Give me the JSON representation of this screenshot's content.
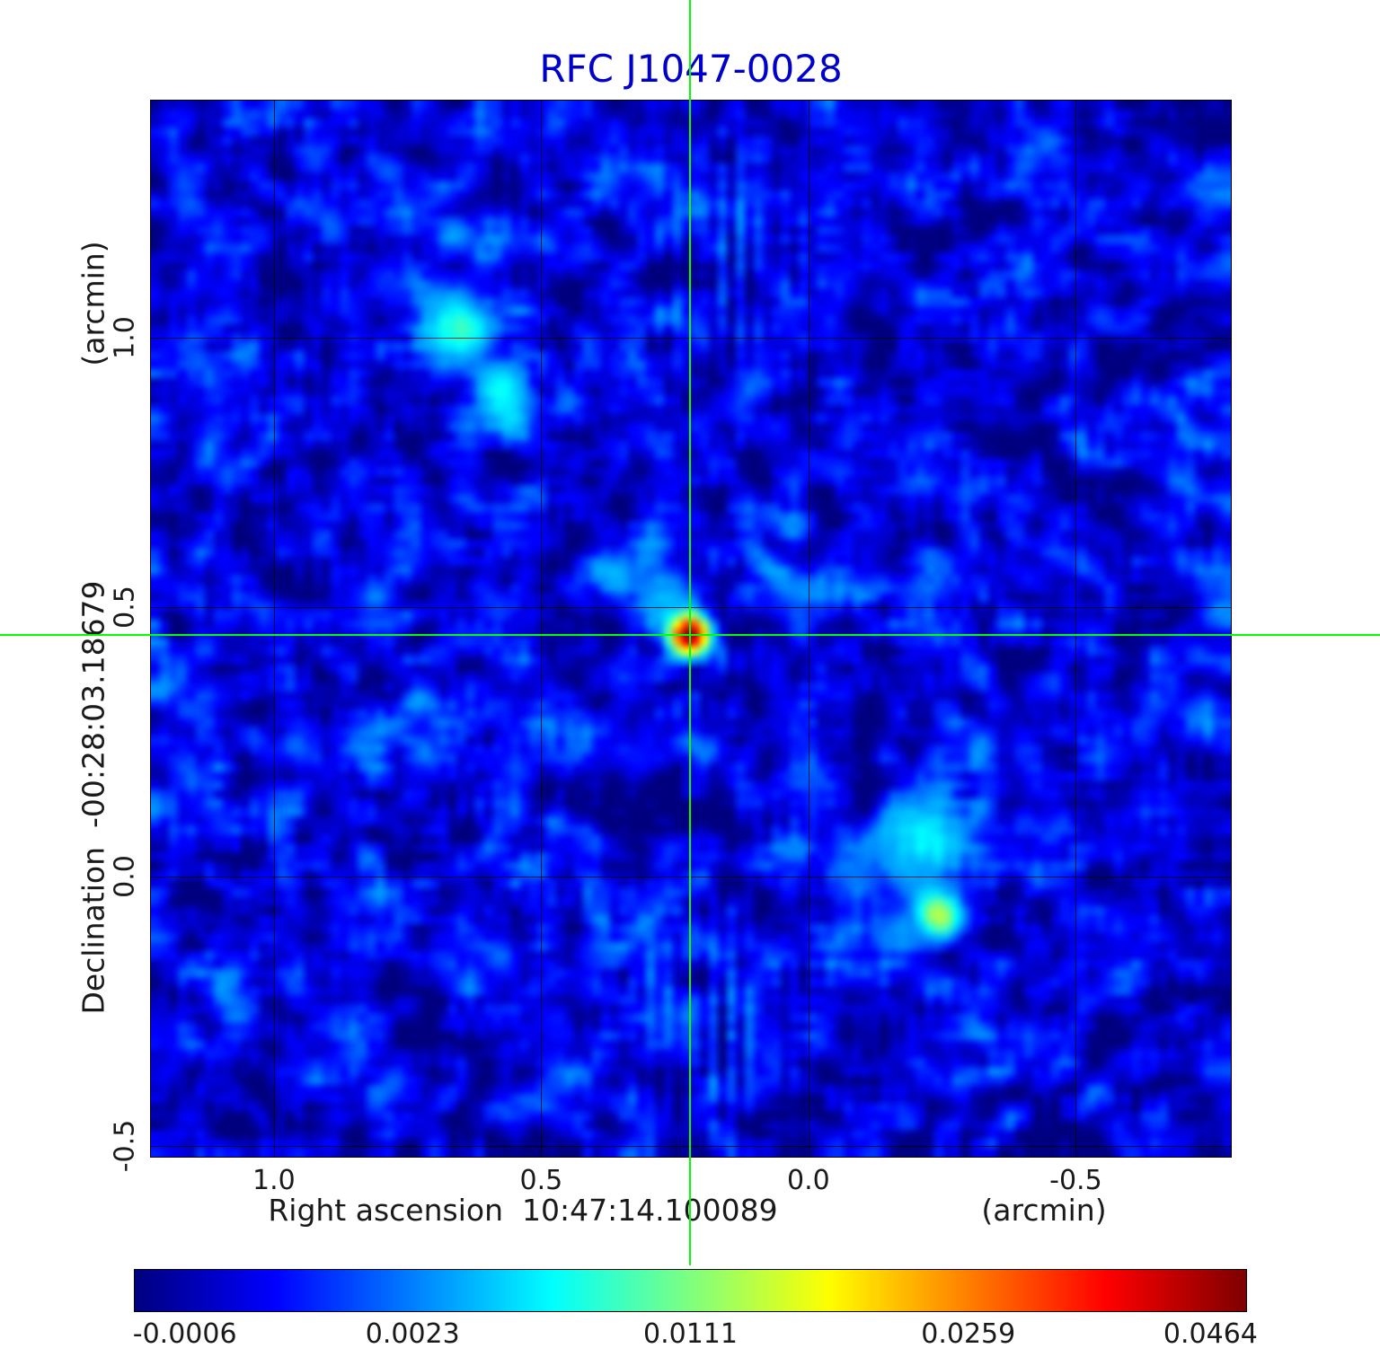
{
  "chart_data": {
    "type": "heatmap",
    "title": "RFC J1047-0028",
    "colormap": "jet",
    "grid": true,
    "x_axis": {
      "label": "Right ascension  10:47:14.100089",
      "unit_label": "(arcmin)",
      "ticks": [
        "1.0",
        "0.5",
        "0.0",
        "-0.5"
      ],
      "tick_values": [
        1.0,
        0.5,
        0.0,
        -0.5
      ],
      "range": [
        1.23,
        -0.79
      ]
    },
    "y_axis": {
      "label": "Declination  -00:28:03.18679",
      "unit_label": "(arcmin)",
      "ticks": [
        "1.0",
        "0.5",
        "0.0",
        "-0.5"
      ],
      "tick_values": [
        1.0,
        0.5,
        0.0,
        -0.5
      ],
      "range": [
        -0.52,
        1.44
      ]
    },
    "colorbar": {
      "ticks": [
        {
          "label": "-0.0006",
          "pos": 0.045
        },
        {
          "label": "0.0023",
          "pos": 0.25
        },
        {
          "label": "0.0111",
          "pos": 0.5
        },
        {
          "label": "0.0259",
          "pos": 0.75
        },
        {
          "label": "0.0464",
          "pos": 0.968
        }
      ]
    },
    "value_anchors": [
      [
        -0.00124,
        0.0
      ],
      [
        -0.0006,
        0.045
      ],
      [
        0.0023,
        0.25
      ],
      [
        0.0111,
        0.5
      ],
      [
        0.0259,
        0.75
      ],
      [
        0.0464,
        0.968
      ],
      [
        0.0494,
        1.0
      ]
    ],
    "crosshair": {
      "x": 0.222,
      "y": 0.449
    },
    "sources": [
      {
        "x": 0.222,
        "y": 0.449,
        "amp": 0.05,
        "sx": 0.021,
        "sy": 0.021
      },
      {
        "x": 0.27,
        "y": 0.5,
        "amp": 0.005,
        "sx": 0.03,
        "sy": 0.03
      },
      {
        "x": 0.335,
        "y": 0.555,
        "amp": 0.003,
        "sx": 0.045,
        "sy": 0.04
      },
      {
        "x": 0.655,
        "y": 1.013,
        "amp": 0.0085,
        "sx": 0.045,
        "sy": 0.04
      },
      {
        "x": 0.575,
        "y": 0.89,
        "amp": 0.006,
        "sx": 0.035,
        "sy": 0.045
      },
      {
        "x": -0.21,
        "y": 0.077,
        "amp": 0.0065,
        "sx": 0.06,
        "sy": 0.055
      },
      {
        "x": -0.244,
        "y": -0.073,
        "amp": 0.013,
        "sx": 0.028,
        "sy": 0.028
      }
    ],
    "stripes": [
      {
        "x": 0.151,
        "y": 1.16,
        "amp": 0.0013,
        "sx": 0.1,
        "sy": 0.13,
        "period": 0.03
      },
      {
        "x": 0.168,
        "y": -0.257,
        "amp": 0.0013,
        "sx": 0.09,
        "sy": 0.12,
        "period": 0.03
      }
    ],
    "noise": {
      "seed": 42,
      "sigma": 0.00075,
      "sigma_lowfreq": 0.00045,
      "mean": 0.0002
    }
  },
  "colors": {
    "title": "#0000cd",
    "crosshair": "#00ff00",
    "grid": "#000000",
    "text": "#1a1a1a"
  }
}
